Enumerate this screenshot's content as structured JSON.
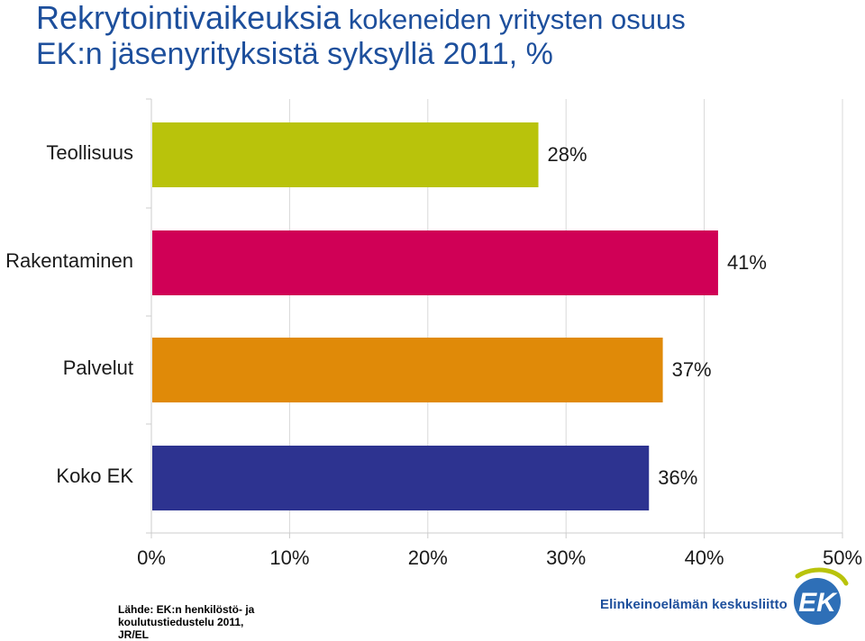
{
  "title": {
    "line1_big": "Rekrytointivaikeuksia",
    "line1_small": " kokeneiden yritysten osuus",
    "line2": "EK:n jäsenyrityksistä syksyllä 2011, %"
  },
  "chart_data": {
    "type": "bar",
    "orientation": "horizontal",
    "categories": [
      "Teollisuus",
      "Rakentaminen",
      "Palvelut",
      "Koko EK"
    ],
    "values": [
      28,
      41,
      37,
      36
    ],
    "value_labels": [
      "28%",
      "41%",
      "37%",
      "36%"
    ],
    "colors": [
      "#b9c30b",
      "#d00056",
      "#e08a08",
      "#2d3390"
    ],
    "xlim": [
      0,
      50
    ],
    "x_ticks": [
      0,
      10,
      20,
      30,
      40,
      50
    ],
    "x_tick_labels": [
      "0%",
      "10%",
      "20%",
      "30%",
      "40%",
      "50%"
    ],
    "grid": true,
    "legend": "none"
  },
  "source_lines": [
    "Lähde: EK:n henkilöstö- ja",
    "koulutustiedustelu 2011,",
    "JR/EL"
  ],
  "brand": {
    "name": "Elinkeinoelämän keskusliitto",
    "logo_text": "EK",
    "logo_color": "#2e6fb7",
    "accent_color": "#b9c30b"
  }
}
